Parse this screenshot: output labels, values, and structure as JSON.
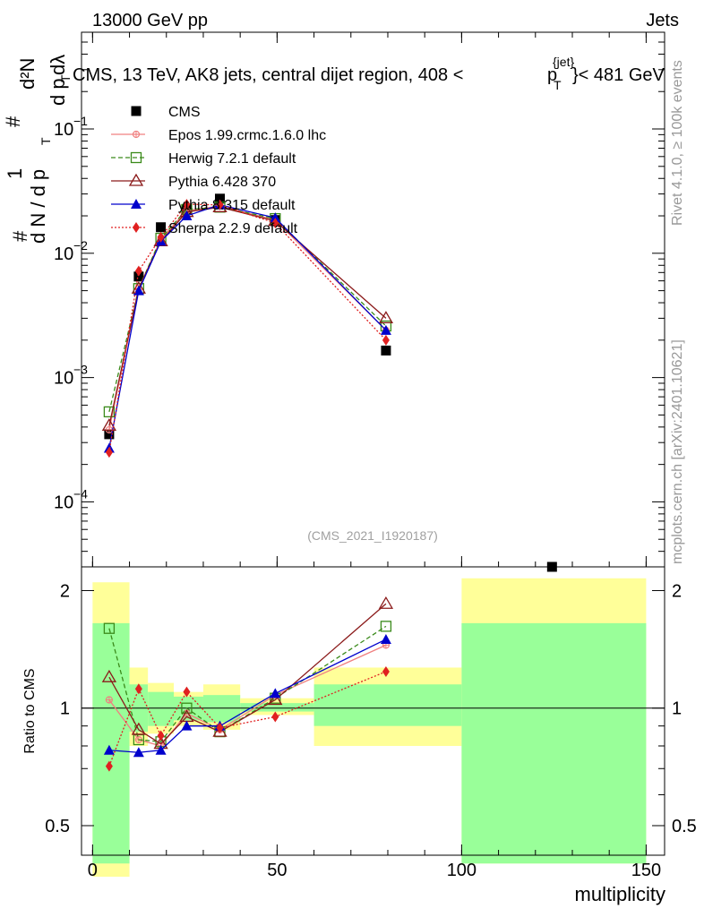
{
  "header": {
    "left": "13000 GeV pp",
    "right": "Jets"
  },
  "title": "CMS, 13 TeV, AK8 jets, central dijet region, 408 <",
  "title_pt": "p",
  "title_pt_sup": "{jet}",
  "title_pt_sub": "T",
  "title_end": "}< 481 GeV",
  "side_labels": {
    "top": "Rivet 4.1.0, ≥ 100k events",
    "bottom": "mcplots.cern.ch [arXiv:2401.10621]"
  },
  "ylabel_main": {
    "one": "1",
    "num": "#",
    "den": "d N / d p",
    "den_sub": "T",
    "frac_num": "d²N",
    "frac_den": "d p",
    "frac_den_sub": "T",
    "frac_den_end": " dλ"
  },
  "analysis_id": "(CMS_2021_I1920187)",
  "xlabel": "multiplicity",
  "ylabel_ratio": "Ratio to CMS",
  "legend": [
    {
      "name": "CMS",
      "color": "#000000",
      "marker": "square-filled"
    },
    {
      "name": "Epos 1.99.crmc.1.6.0 lhc",
      "color": "#f08080",
      "marker": "cross-open"
    },
    {
      "name": "Herwig 7.2.1 default",
      "color": "#3a8a1a",
      "marker": "square-open"
    },
    {
      "name": "Pythia 6.428 370",
      "color": "#8b1a1a",
      "marker": "triangle-open"
    },
    {
      "name": "Pythia 8.315 default",
      "color": "#0000cc",
      "marker": "triangle-filled"
    },
    {
      "name": "Sherpa 2.2.9 default",
      "color": "#e02020",
      "marker": "diamond-filled"
    }
  ],
  "chart_data": [
    {
      "type": "line",
      "panel": "main",
      "yscale": "log",
      "xlim": [
        -3,
        155
      ],
      "ylim": [
        3e-05,
        0.6
      ],
      "yticks": [
        "10^-4",
        "10^-3",
        "10^-2",
        "10^-1"
      ],
      "xticks": [
        0,
        50,
        100,
        150
      ],
      "x": [
        4.5,
        12.5,
        18.5,
        25.5,
        34.5,
        49.5,
        79.5
      ],
      "series": [
        {
          "name": "CMS",
          "values": [
            0.00035,
            0.0065,
            0.0162,
            0.0225,
            0.0275,
            0.0185,
            0.00165
          ],
          "extra_point": {
            "x": 124.5,
            "y": 3e-05
          }
        },
        {
          "name": "Epos 1.99.crmc.1.6.0 lhc",
          "values": [
            0.00038,
            0.0052,
            0.013,
            0.022,
            0.024,
            0.0185,
            0.0024
          ]
        },
        {
          "name": "Herwig 7.2.1 default",
          "values": [
            0.00053,
            0.0052,
            0.0132,
            0.0225,
            0.0235,
            0.019,
            0.0026
          ]
        },
        {
          "name": "Pythia 6.428 370",
          "values": [
            0.00041,
            0.0052,
            0.0125,
            0.0215,
            0.0235,
            0.0182,
            0.003
          ]
        },
        {
          "name": "Pythia 8.315 default",
          "values": [
            0.00027,
            0.005,
            0.0125,
            0.02,
            0.0245,
            0.0193,
            0.0024
          ]
        },
        {
          "name": "Sherpa 2.2.9 default",
          "values": [
            0.00025,
            0.0072,
            0.0135,
            0.0248,
            0.0245,
            0.0175,
            0.002
          ]
        }
      ]
    },
    {
      "type": "line",
      "panel": "ratio",
      "yscale": "log",
      "xlim": [
        -3,
        155
      ],
      "ylim": [
        0.42,
        2.3
      ],
      "yticks": [
        0.5,
        1,
        2
      ],
      "xticks": [
        0,
        50,
        100,
        150
      ],
      "x": [
        4.5,
        12.5,
        18.5,
        25.5,
        34.5,
        49.5,
        79.5
      ],
      "bands": [
        {
          "x0": 0,
          "x1": 10,
          "yellow": [
            0.37,
            2.1
          ],
          "green": [
            0.4,
            1.65
          ]
        },
        {
          "x0": 10,
          "x1": 15,
          "yellow": [
            0.8,
            1.27
          ],
          "green": [
            0.87,
            1.15
          ]
        },
        {
          "x0": 15,
          "x1": 22,
          "yellow": [
            0.86,
            1.16
          ],
          "green": [
            0.9,
            1.1
          ]
        },
        {
          "x0": 22,
          "x1": 30,
          "yellow": [
            0.9,
            1.1
          ],
          "green": [
            0.93,
            1.07
          ]
        },
        {
          "x0": 30,
          "x1": 40,
          "yellow": [
            0.88,
            1.15
          ],
          "green": [
            0.92,
            1.08
          ]
        },
        {
          "x0": 40,
          "x1": 60,
          "yellow": [
            0.96,
            1.06
          ],
          "green": [
            0.98,
            1.03
          ]
        },
        {
          "x0": 60,
          "x1": 100,
          "yellow": [
            0.8,
            1.27
          ],
          "green": [
            0.9,
            1.15
          ]
        },
        {
          "x0": 100,
          "x1": 150,
          "yellow": [
            0.4,
            2.15
          ],
          "green": [
            0.4,
            1.65
          ]
        }
      ],
      "series": [
        {
          "name": "Epos 1.99.crmc.1.6.0 lhc",
          "values": [
            1.05,
            0.83,
            0.8,
            0.97,
            0.88,
            1.08,
            1.45
          ]
        },
        {
          "name": "Herwig 7.2.1 default",
          "values": [
            1.6,
            0.83,
            0.82,
            1.0,
            0.87,
            1.06,
            1.62
          ]
        },
        {
          "name": "Pythia 6.428 370",
          "values": [
            1.2,
            0.88,
            0.81,
            0.95,
            0.87,
            1.05,
            1.85
          ]
        },
        {
          "name": "Pythia 8.315 default",
          "values": [
            0.78,
            0.77,
            0.78,
            0.9,
            0.9,
            1.09,
            1.5
          ]
        },
        {
          "name": "Sherpa 2.2.9 default",
          "values": [
            0.71,
            1.12,
            0.85,
            1.1,
            0.89,
            0.95,
            1.24
          ]
        }
      ]
    }
  ]
}
